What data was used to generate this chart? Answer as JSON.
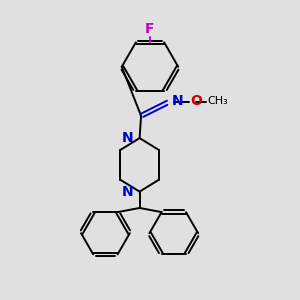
{
  "background_color": "#e0e0e0",
  "bond_color": "#000000",
  "N_color": "#0000cc",
  "O_color": "#cc0000",
  "F_color": "#cc00cc",
  "figsize": [
    3.0,
    3.0
  ],
  "dpi": 100,
  "xlim": [
    0,
    10
  ],
  "ylim": [
    0,
    10
  ]
}
